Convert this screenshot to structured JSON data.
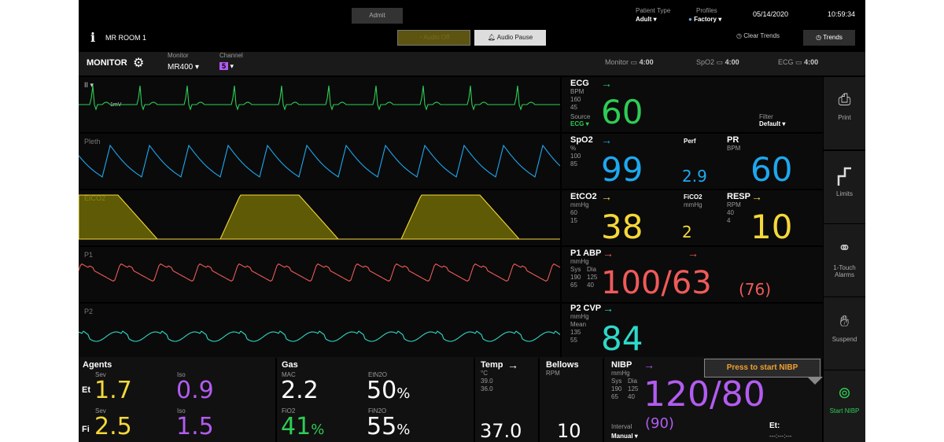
{
  "top": {
    "admit": "Admit",
    "patient_type_label": "Patient Type",
    "patient_type": "Adult",
    "profiles_label": "Profiles",
    "profile": "Factory",
    "date": "05/14/2020",
    "time": "10:59:34",
    "room": "MR ROOM 1",
    "info_icon": "i",
    "audio_off": "Audio Off",
    "audio_pause": "Audio Pause",
    "clear_trends": "Clear Trends",
    "trends": "Trends"
  },
  "bar": {
    "monitor": "MONITOR",
    "monitor_label": "Monitor",
    "monitor_val": "MR400",
    "channel_label": "Channel",
    "channel_val": "5",
    "bat_monitor_label": "Monitor",
    "bat_monitor": "4:00",
    "bat_spo2_label": "SpO2",
    "bat_spo2": "4:00",
    "bat_ecg_label": "ECG",
    "bat_ecg": "4:00"
  },
  "waves": {
    "ecg_lead": "II",
    "ecg_scale": "1mV",
    "pleth": "Pleth",
    "etco2": "EtCO2",
    "p1": "P1",
    "p2": "P2"
  },
  "ecg": {
    "name": "ECG",
    "unit": "BPM",
    "hi": "160",
    "lo": "45",
    "source_label": "Source",
    "source": "ECG",
    "filter_label": "Filter",
    "filter": "Default",
    "value": "60"
  },
  "spo2": {
    "name": "SpO2",
    "unit": "%",
    "hi": "100",
    "lo": "85",
    "value": "99",
    "perf_label": "Perf",
    "perf": "2.9",
    "pr_label": "PR",
    "pr_unit": "BPM",
    "pr": "60"
  },
  "etco2": {
    "name": "EtCO2",
    "unit": "mmHg",
    "hi": "60",
    "lo": "15",
    "value": "38",
    "fico2_label": "FiCO2",
    "fico2_unit": "mmHg",
    "fico2": "2",
    "resp_label": "RESP",
    "resp_unit": "RPM",
    "resp_hi": "40",
    "resp_lo": "4",
    "resp": "10"
  },
  "abp": {
    "name": "P1 ABP",
    "unit": "mmHg",
    "sys": "Sys",
    "dia": "Dia",
    "sys_hi": "190",
    "sys_lo": "65",
    "dia_hi": "125",
    "dia_lo": "40",
    "value": "100/63",
    "mean": "(76)"
  },
  "cvp": {
    "name": "P2 CVP",
    "unit": "mmHg",
    "mean_label": "Mean",
    "hi": "135",
    "lo": "55",
    "value": "84"
  },
  "agents": {
    "title": "Agents",
    "sev1": "Sev",
    "iso1": "Iso",
    "et": "Et",
    "fi": "Fi",
    "et_sev": "1.7",
    "et_iso": "0.9",
    "sev2": "Sev",
    "iso2": "Iso",
    "fi_sev": "2.5",
    "fi_iso": "1.5"
  },
  "gas": {
    "title": "Gas",
    "mac_label": "MAC",
    "mac": "2.2",
    "etn2o_label": "EtN2O",
    "etn2o": "50",
    "fio2_label": "FiO2",
    "fio2": "41",
    "fin2o_label": "FiN2O",
    "fin2o": "55",
    "pct": "%"
  },
  "temp": {
    "title": "Temp",
    "unit": "°C",
    "hi": "39.0",
    "lo": "36.0",
    "value": "37.0"
  },
  "bellows": {
    "title": "Bellows",
    "unit": "RPM",
    "value": "10"
  },
  "nibp": {
    "title": "NIBP",
    "unit": "mmHg",
    "sys": "Sys",
    "dia": "Dia",
    "sys_hi": "190",
    "sys_lo": "65",
    "dia_hi": "125",
    "dia_lo": "40",
    "value": "120/80",
    "mean": "(90)",
    "interval_label": "Interval",
    "interval": "Manual",
    "tooltip": "Press to start NIBP",
    "et_label": "Et:",
    "et": "---:---:---"
  },
  "side": {
    "print": "Print",
    "limits": "Limits",
    "touch": "1-Touch",
    "alarms": "Alarms",
    "suspend": "Suspend",
    "start_nibp": "Start NIBP"
  },
  "colors": {
    "ecg": "#2ecc55",
    "spo2": "#1ea8f0",
    "co2": "#f5d83a",
    "abp": "#f05a5a",
    "cvp": "#2fd8c8",
    "agent_sev": "#f5d83a",
    "agent_iso": "#b25cf0",
    "fio2": "#2ecc55",
    "nibp": "#b25cf0",
    "tooltip": "#f0a030"
  },
  "icons": [
    "info-icon",
    "gear-icon",
    "bell-icon",
    "clock-icon",
    "printer-icon",
    "limits-icon",
    "people-icon",
    "hand-icon",
    "nibp-icon"
  ]
}
